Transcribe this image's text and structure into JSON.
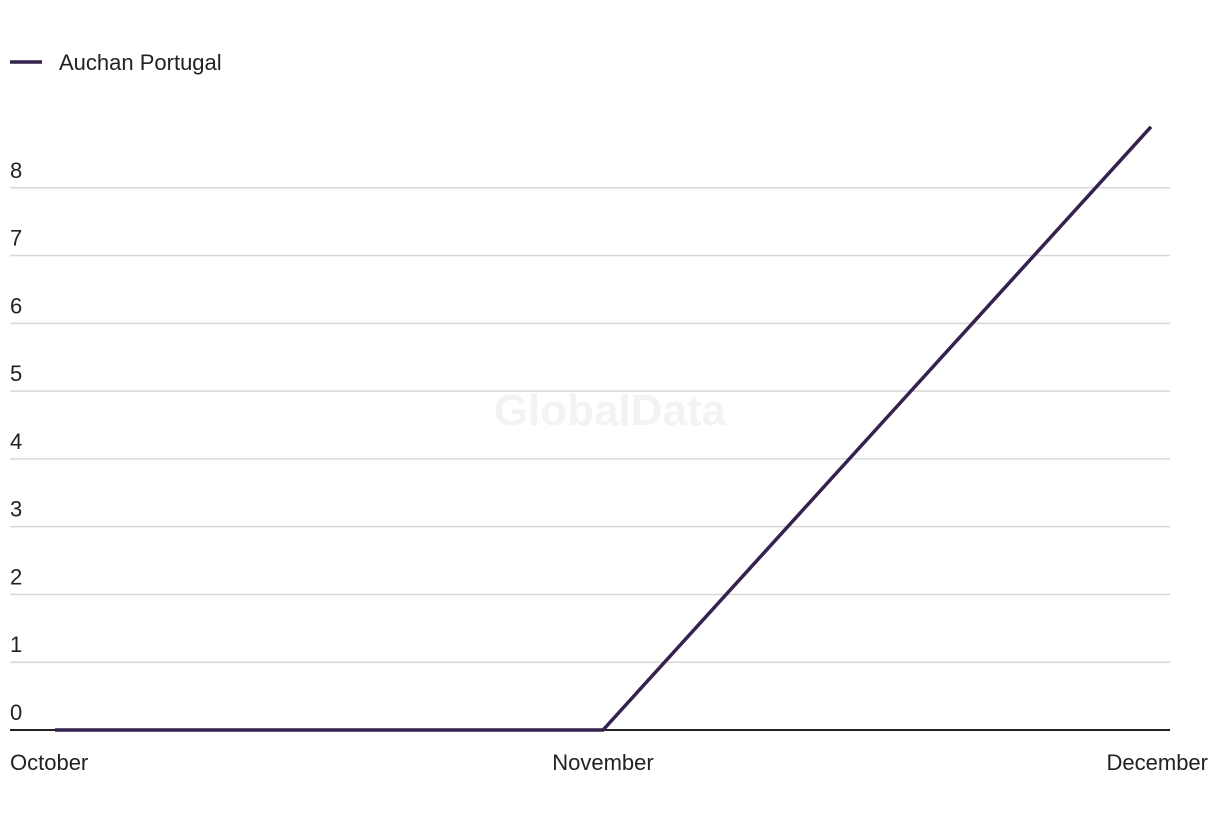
{
  "chart_data": {
    "type": "line",
    "watermark": "GlobalData",
    "categories": [
      "October",
      "November",
      "December"
    ],
    "series": [
      {
        "name": "Auchan Portugal",
        "color": "#35224f",
        "values": [
          0,
          0,
          8.9
        ]
      }
    ],
    "ylim": [
      0,
      9
    ],
    "yticks": [
      0,
      1,
      2,
      3,
      4,
      5,
      6,
      7,
      8
    ],
    "grid": true,
    "legend": "top-left"
  }
}
